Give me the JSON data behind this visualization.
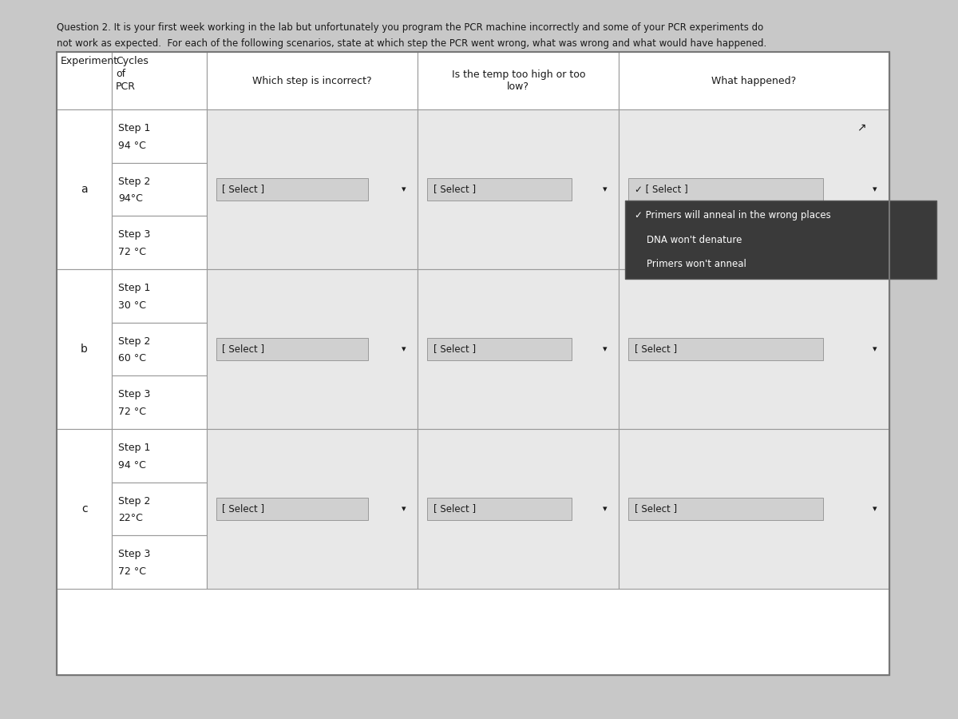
{
  "title_line1": "Question 2. It is your first week working in the lab but unfortunately you program the PCR machine incorrectly and some of your PCR experiments do",
  "title_line2": "not work as expected.  For each of the following scenarios, state at which step the PCR went wrong, what was wrong and what would have happened.",
  "col_headers": [
    "Experiment",
    "Cycles of PCR",
    "Which step is incorrect?",
    "Is the temp too high or too low?",
    "What happened?"
  ],
  "experiments": [
    {
      "label": "a",
      "steps": [
        "Step 1\n94 °C",
        "Step 2\n94°C",
        "Step 3\n72 °C"
      ],
      "step2_row": 1,
      "select1": "[ Select ]",
      "select2": "[ Select ]",
      "select3_open": true,
      "select3_label": "[ Select ]",
      "dropdown_items": [
        "Primers will anneal in the wrong places",
        "DNA won't denature",
        "Primers won't anneal"
      ],
      "dropdown_checked": 0
    },
    {
      "label": "b",
      "steps": [
        "Step 1\n30 °C",
        "Step 2\n60 °C",
        "Step 3\n72 °C"
      ],
      "step2_row": 1,
      "select1": "[ Select ]",
      "select2": "[ Select ]",
      "select3_open": false,
      "select3_label": "[ Select ]"
    },
    {
      "label": "c",
      "steps": [
        "Step 1\n94 °C",
        "Step 2\n22°C",
        "Step 3\n72 °C"
      ],
      "step2_row": 1,
      "select1": "[ Select ]",
      "select2": "[ Select ]",
      "select3_open": false,
      "select3_label": "[ Select ]"
    }
  ],
  "bg_color": "#d3d3d3",
  "page_bg": "#c8c8c8",
  "table_bg": "#ffffff",
  "header_bg": "#ffffff",
  "cell_bg": "#e8e8e8",
  "select_bg": "#d0d0d0",
  "dropdown_bg": "#3a3a3a",
  "dropdown_text": "#ffffff",
  "dropdown_checked_color": "#ffffff",
  "border_color": "#999999",
  "text_color": "#1a1a1a",
  "font_size": 9,
  "title_font_size": 8.5
}
